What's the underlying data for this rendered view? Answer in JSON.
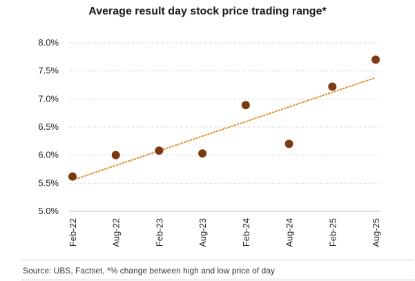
{
  "chart_data": {
    "type": "scatter",
    "title": "Average result day stock price trading range*",
    "categories": [
      "Feb-22",
      "Aug-22",
      "Feb-23",
      "Aug-23",
      "Feb-24",
      "Aug-24",
      "Feb-25",
      "Aug-25"
    ],
    "values": [
      5.62,
      6.0,
      6.08,
      6.03,
      6.89,
      6.2,
      7.22,
      7.7
    ],
    "value_format": "percent",
    "ylim": [
      5.0,
      8.0
    ],
    "yticks": [
      5.0,
      5.5,
      6.0,
      6.5,
      7.0,
      7.5,
      8.0
    ],
    "ytick_labels": [
      "5.0%",
      "5.5%",
      "6.0%",
      "6.5%",
      "7.0%",
      "7.5%",
      "8.0%"
    ],
    "trendline": {
      "type": "linear",
      "style": "dotted",
      "color": "#e08a1e"
    },
    "marker_color": "#7b3a10",
    "grid": "horizontal-dashed",
    "xlabel": "",
    "ylabel": ""
  },
  "source_note": "Source: UBS, Factset, *% change between high and low price of day"
}
